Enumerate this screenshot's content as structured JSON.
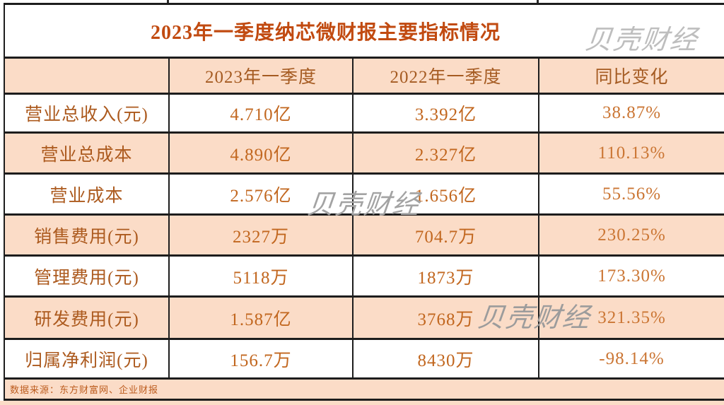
{
  "title": "2023年一季度纳芯微财报主要指标情况",
  "watermark_text": "贝壳财经",
  "source_note": "数据来源：东方财富网、企业财报",
  "colors": {
    "row_band": "#FBDCC7",
    "title_text": "#C14A10",
    "header_text": "#A55B22",
    "label_text": "#AC5A1E",
    "value_text": "#C2671F",
    "percent_text": "#CB7634",
    "border": "#1D1D1D",
    "watermark": "#A3A3A3"
  },
  "table": {
    "header": [
      "",
      "2023年一季度",
      "2022年一季度",
      "同比变化"
    ],
    "rows": [
      {
        "cells": [
          "营业总收入(元)",
          "4.710亿",
          "3.392亿",
          "38.87%"
        ]
      },
      {
        "cells": [
          "营业总成本",
          "4.890亿",
          "2.327亿",
          "110.13%"
        ]
      },
      {
        "cells": [
          "营业成本",
          "2.576亿",
          "1.656亿",
          "55.56%"
        ]
      },
      {
        "cells": [
          "销售费用(元)",
          "2327万",
          "704.7万",
          "230.25%"
        ]
      },
      {
        "cells": [
          "管理费用(元)",
          "5118万",
          "1873万",
          "173.30%"
        ]
      },
      {
        "cells": [
          "研发费用(元)",
          "1.587亿",
          "3768万",
          "321.35%"
        ]
      },
      {
        "cells": [
          "归属净利润(元)",
          "156.7万",
          "8430万",
          "-98.14%"
        ]
      }
    ]
  },
  "chart_data": {
    "type": "table",
    "title": "2023年一季度纳芯微财报主要指标情况",
    "columns": [
      "",
      "2023年一季度",
      "2022年一季度",
      "同比变化"
    ],
    "rows": [
      [
        "营业总收入(元)",
        "4.710亿",
        "3.392亿",
        "38.87%"
      ],
      [
        "营业总成本",
        "4.890亿",
        "2.327亿",
        "110.13%"
      ],
      [
        "营业成本",
        "2.576亿",
        "1.656亿",
        "55.56%"
      ],
      [
        "销售费用(元)",
        "2327万",
        "704.7万",
        "230.25%"
      ],
      [
        "管理费用(元)",
        "5118万",
        "1873万",
        "173.30%"
      ],
      [
        "研发费用(元)",
        "1.587亿",
        "3768万",
        "321.35%"
      ],
      [
        "归属净利润(元)",
        "156.7万",
        "8430万",
        "-98.14%"
      ]
    ],
    "source": "数据来源：东方财富网、企业财报",
    "layout": {
      "banded_rows": true,
      "band_color": "#FBDCC7",
      "grid": true
    }
  }
}
